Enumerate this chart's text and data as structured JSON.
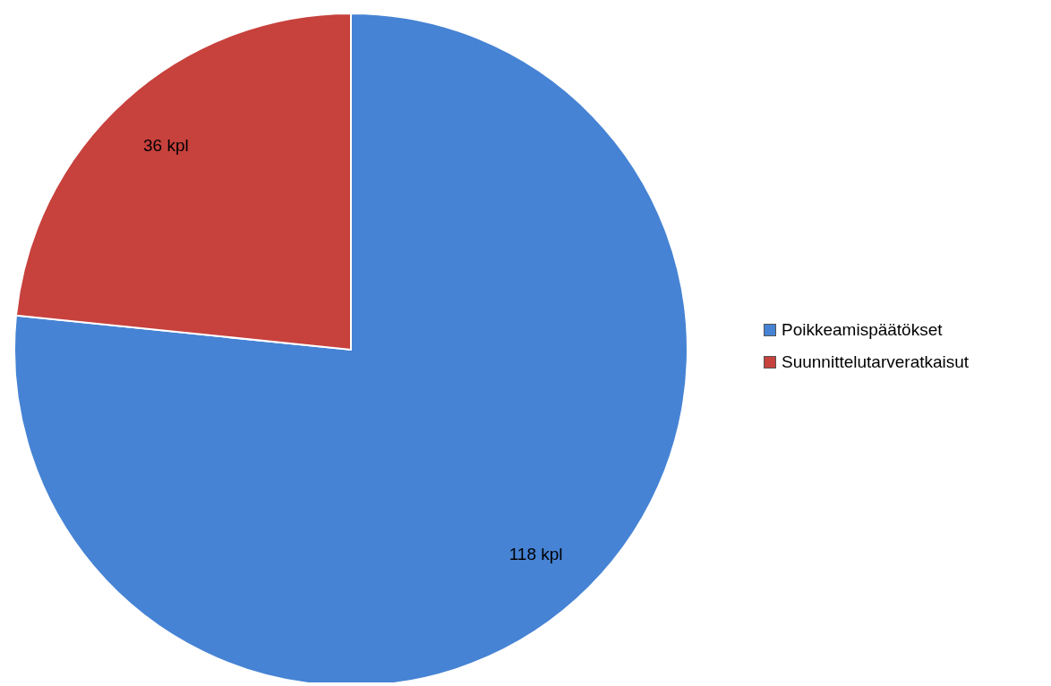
{
  "chart_data": {
    "type": "pie",
    "categories": [
      "Poikkeamispäätökset",
      "Suunnittelutarveratkaisut"
    ],
    "values": [
      118,
      36
    ],
    "value_labels": [
      "118 kpl",
      "36 kpl"
    ],
    "colors": [
      "#4683d4",
      "#c7413d"
    ],
    "legend": "right"
  }
}
